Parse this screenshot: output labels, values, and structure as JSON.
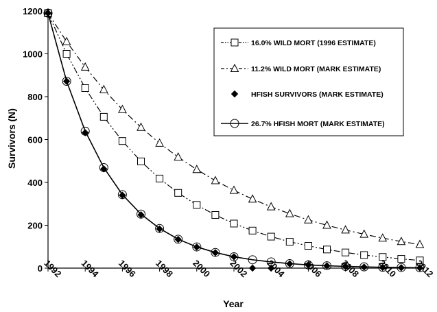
{
  "chart_data": {
    "type": "line",
    "title": "",
    "xlabel": "Year",
    "ylabel": "Survivors (N)",
    "xlim": [
      1992,
      2012
    ],
    "ylim": [
      0,
      1200
    ],
    "x_ticks": [
      1992,
      1994,
      1996,
      1998,
      2000,
      2002,
      2004,
      2006,
      2008,
      2010,
      2012
    ],
    "x_tick_labels": [
      "1992",
      "1994",
      "1996",
      "1998",
      "2000",
      "2002",
      "2004",
      "2006",
      "2008",
      "2010",
      "2012"
    ],
    "y_ticks": [
      0,
      200,
      400,
      600,
      800,
      1000,
      1200
    ],
    "y_tick_labels": [
      "0",
      "200",
      "400",
      "600",
      "800",
      "1000",
      "1200"
    ],
    "grid": false,
    "legend_position": "top-right",
    "x": [
      1992,
      1993,
      1994,
      1995,
      1996,
      1997,
      1998,
      1999,
      2000,
      2001,
      2002,
      2003,
      2004,
      2005,
      2006,
      2007,
      2008,
      2009,
      2010,
      2011,
      2012
    ],
    "series": [
      {
        "name": "16.0% WILD MORT (1996 ESTIMATE)",
        "marker": "open-square",
        "line": "dash-dot-dot",
        "color": "#000000",
        "values": [
          1190,
          1000,
          840,
          706,
          593,
          498,
          418,
          351,
          295,
          248,
          208,
          175,
          147,
          123,
          104,
          87,
          73,
          61,
          52,
          43,
          36
        ]
      },
      {
        "name": "11.2% WILD MORT (MARK ESTIMATE)",
        "marker": "open-triangle",
        "line": "dash-dot",
        "color": "#000000",
        "values": [
          1190,
          1057,
          938,
          833,
          740,
          657,
          583,
          518,
          460,
          408,
          363,
          322,
          286,
          254,
          225,
          200,
          178,
          158,
          140,
          124,
          110
        ]
      },
      {
        "name": "HFISH SURVIVORS (MARK ESTIMATE)",
        "marker": "filled-diamond",
        "line": "none",
        "color": "#000000",
        "values": [
          1190,
          872,
          632,
          463,
          340,
          249,
          183,
          134,
          98,
          72,
          53,
          0,
          0,
          20,
          15,
          11,
          8,
          5,
          3,
          2,
          1
        ]
      },
      {
        "name": "26.7% HFISH MORT (MARK ESTIMATE)",
        "marker": "open-circle",
        "line": "solid",
        "color": "#000000",
        "values": [
          1190,
          872,
          639,
          469,
          343,
          252,
          185,
          135,
          99,
          73,
          53,
          39,
          29,
          21,
          15,
          11,
          8,
          6,
          4,
          3,
          2
        ]
      }
    ]
  }
}
